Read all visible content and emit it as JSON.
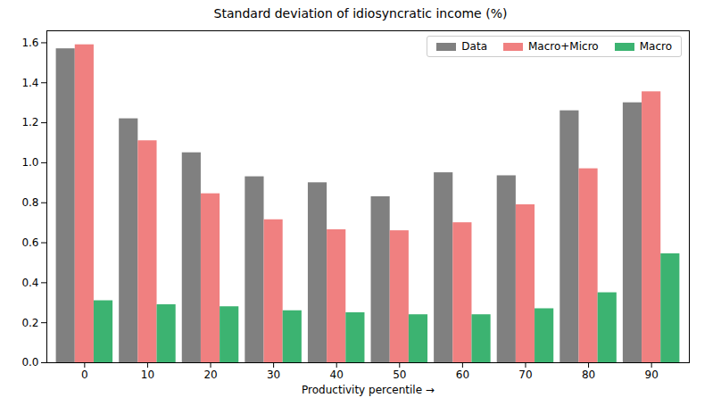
{
  "chart_data": {
    "type": "bar",
    "title": "Standard deviation of idiosyncratic income (%)",
    "x_label": "Productivity percentile",
    "categories": [
      "0",
      "10",
      "20",
      "30",
      "40",
      "50",
      "60",
      "70",
      "80",
      "90"
    ],
    "series": [
      {
        "name": "Data",
        "color": "#808080",
        "values": [
          1.57,
          1.22,
          1.05,
          0.93,
          0.9,
          0.83,
          0.95,
          0.935,
          1.26,
          1.3
        ]
      },
      {
        "name": "Macro+Micro",
        "color": "#f08080",
        "values": [
          1.59,
          1.11,
          0.845,
          0.715,
          0.665,
          0.66,
          0.7,
          0.79,
          0.97,
          1.355
        ]
      },
      {
        "name": "Macro",
        "color": "#3cb371",
        "values": [
          0.31,
          0.29,
          0.28,
          0.26,
          0.25,
          0.24,
          0.24,
          0.27,
          0.35,
          0.545
        ]
      }
    ],
    "ylim": [
      0,
      1.66
    ],
    "yticks": [
      {
        "value": 0,
        "label": "0.0"
      },
      0.2,
      0.4,
      0.6,
      0.8,
      {
        "value": 1,
        "label": "1.0"
      },
      1.2,
      1.4,
      1.6
    ],
    "grid": false,
    "legend": "upper right"
  }
}
